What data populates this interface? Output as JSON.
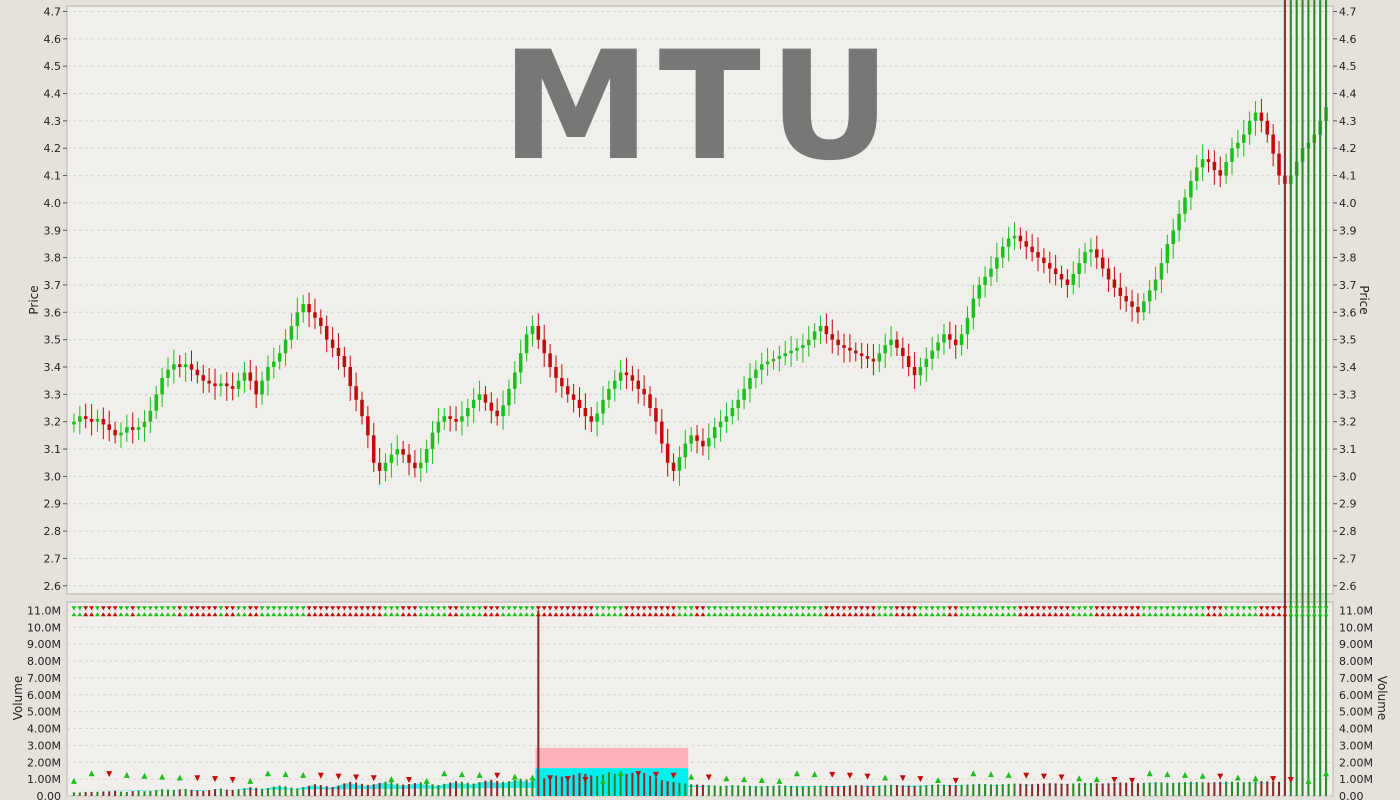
{
  "symbol": "MTU",
  "colors": {
    "background": "#e5e2dc",
    "plot_bg": "#f0efeb",
    "grid": "#d8d6d0",
    "up": "#1cc01c",
    "down": "#c20c0c",
    "neutral": "#000000",
    "watermark": "#777777",
    "volume_avg": "#00f0f0",
    "volume_avg_high": "#ffb0b8"
  },
  "chart_data": [
    {
      "type": "candlestick",
      "title": "MTU",
      "ylabel": "Price",
      "ylim": [
        2.57,
        4.72
      ],
      "y_ticks": [
        "2.6",
        "2.7",
        "2.8",
        "2.9",
        "3.0",
        "3.1",
        "3.2",
        "3.3",
        "3.4",
        "3.5",
        "3.6",
        "3.7",
        "3.8",
        "3.9",
        "4.0",
        "4.1",
        "4.2",
        "4.3",
        "4.4",
        "4.5",
        "4.6",
        "4.7"
      ],
      "grid": true,
      "series": [
        {
          "name": "",
          "close": [
            3.2,
            3.22,
            3.21,
            3.2,
            3.21,
            3.19,
            3.17,
            3.15,
            3.16,
            3.18,
            3.17,
            3.18,
            3.2,
            3.24,
            3.3,
            3.36,
            3.39,
            3.41,
            3.4,
            3.41,
            3.39,
            3.37,
            3.35,
            3.34,
            3.33,
            3.34,
            3.33,
            3.32,
            3.35,
            3.38,
            3.35,
            3.3,
            3.35,
            3.4,
            3.42,
            3.45,
            3.5,
            3.55,
            3.6,
            3.63,
            3.6,
            3.58,
            3.55,
            3.5,
            3.47,
            3.44,
            3.4,
            3.33,
            3.28,
            3.22,
            3.15,
            3.05,
            3.02,
            3.05,
            3.08,
            3.1,
            3.08,
            3.05,
            3.03,
            3.05,
            3.1,
            3.16,
            3.2,
            3.22,
            3.21,
            3.2,
            3.22,
            3.25,
            3.28,
            3.3,
            3.27,
            3.24,
            3.22,
            3.26,
            3.32,
            3.38,
            3.45,
            3.52,
            3.55,
            3.5,
            3.45,
            3.4,
            3.36,
            3.33,
            3.3,
            3.28,
            3.25,
            3.22,
            3.2,
            3.23,
            3.28,
            3.32,
            3.35,
            3.38,
            3.37,
            3.35,
            3.32,
            3.3,
            3.25,
            3.2,
            3.12,
            3.05,
            3.02,
            3.07,
            3.12,
            3.15,
            3.13,
            3.11,
            3.14,
            3.18,
            3.2,
            3.22,
            3.25,
            3.28,
            3.32,
            3.36,
            3.39,
            3.41,
            3.42,
            3.43,
            3.44,
            3.45,
            3.46,
            3.47,
            3.48,
            3.5,
            3.53,
            3.55,
            3.52,
            3.5,
            3.48,
            3.47,
            3.46,
            3.45,
            3.44,
            3.43,
            3.42,
            3.45,
            3.48,
            3.5,
            3.47,
            3.44,
            3.4,
            3.37,
            3.4,
            3.43,
            3.46,
            3.49,
            3.52,
            3.5,
            3.48,
            3.52,
            3.58,
            3.65,
            3.7,
            3.73,
            3.76,
            3.8,
            3.84,
            3.87,
            3.88,
            3.86,
            3.84,
            3.82,
            3.8,
            3.78,
            3.76,
            3.74,
            3.72,
            3.7,
            3.74,
            3.78,
            3.82,
            3.83,
            3.8,
            3.76,
            3.72,
            3.69,
            3.66,
            3.64,
            3.62,
            3.6,
            3.64,
            3.68,
            3.72,
            3.78,
            3.85,
            3.9,
            3.96,
            4.02,
            4.08,
            4.13,
            4.16,
            4.15,
            4.12,
            4.1,
            4.15,
            4.2,
            4.22,
            4.25,
            4.3,
            4.33,
            4.3,
            4.25,
            4.18,
            4.1,
            4.07,
            4.1,
            4.15,
            4.2,
            4.22,
            4.25,
            4.3,
            4.35
          ],
          "volume_millions": [
            0.22,
            0.21,
            0.23,
            0.24,
            0.25,
            0.27,
            0.28,
            0.31,
            0.26,
            0.24,
            0.29,
            0.33,
            0.28,
            0.3,
            0.35,
            0.4,
            0.38,
            0.36,
            0.39,
            0.42,
            0.37,
            0.33,
            0.3,
            0.35,
            0.41,
            0.44,
            0.38,
            0.36,
            0.4,
            0.46,
            0.52,
            0.48,
            0.43,
            0.47,
            0.55,
            0.62,
            0.58,
            0.5,
            0.45,
            0.53,
            0.61,
            0.7,
            0.65,
            0.58,
            0.54,
            0.62,
            0.75,
            0.84,
            0.8,
            0.72,
            0.66,
            0.7,
            0.78,
            0.86,
            0.82,
            0.74,
            0.68,
            0.71,
            0.77,
            0.81,
            0.76,
            0.7,
            0.65,
            0.72,
            0.8,
            0.88,
            0.84,
            0.79,
            0.74,
            0.82,
            0.91,
            0.96,
            0.9,
            0.85,
            0.88,
            0.95,
            1.02,
            0.98,
            0.9,
            11.0,
            1.05,
            1.12,
            1.2,
            1.15,
            1.08,
            1.25,
            1.35,
            1.3,
            1.22,
            1.18,
            1.28,
            1.4,
            1.32,
            1.25,
            1.3,
            1.38,
            1.45,
            1.36,
            1.2,
            1.1,
            0.95,
            0.88,
            0.82,
            0.78,
            0.74,
            0.7,
            0.68,
            0.66,
            0.64,
            0.62,
            0.6,
            0.62,
            0.64,
            0.63,
            0.61,
            0.6,
            0.58,
            0.57,
            0.59,
            0.61,
            0.63,
            0.62,
            0.6,
            0.58,
            0.57,
            0.59,
            0.61,
            0.62,
            0.6,
            0.59,
            0.58,
            0.6,
            0.62,
            0.64,
            0.63,
            0.61,
            0.6,
            0.62,
            0.64,
            0.66,
            0.65,
            0.63,
            0.61,
            0.6,
            0.62,
            0.64,
            0.66,
            0.68,
            0.67,
            0.65,
            0.64,
            0.66,
            0.68,
            0.7,
            0.72,
            0.71,
            0.69,
            0.68,
            0.7,
            0.72,
            0.74,
            0.73,
            0.71,
            0.7,
            0.72,
            0.74,
            0.76,
            0.75,
            0.73,
            0.72,
            0.74,
            0.76,
            0.78,
            0.77,
            0.75,
            0.74,
            0.76,
            0.78,
            0.8,
            0.79,
            0.77,
            0.76,
            0.78,
            0.8,
            0.82,
            0.81,
            0.79,
            0.78,
            0.8,
            0.82,
            0.84,
            0.83,
            0.81,
            0.8,
            0.82,
            0.84,
            0.86,
            0.85,
            0.83,
            0.82,
            0.84,
            0.86,
            0.88,
            0.87,
            0.85,
            0.84
          ]
        }
      ]
    },
    {
      "type": "bar",
      "ylabel": "Volume",
      "ylim": [
        0,
        11.5
      ],
      "y_ticks": [
        "0.00",
        "1.00M",
        "2.00M",
        "3.00M",
        "4.00M",
        "5.00M",
        "6.00M",
        "7.00M",
        "8.00M",
        "9.00M",
        "10.0M",
        "11.0M"
      ],
      "grid": true,
      "spike_index": 79,
      "spike_value_millions": 11.0,
      "avg_band_start_index": 79,
      "avg_band_end_index": 105,
      "avg_band_high_millions": 2.85,
      "avg_band_low_millions": 1.65
    }
  ]
}
